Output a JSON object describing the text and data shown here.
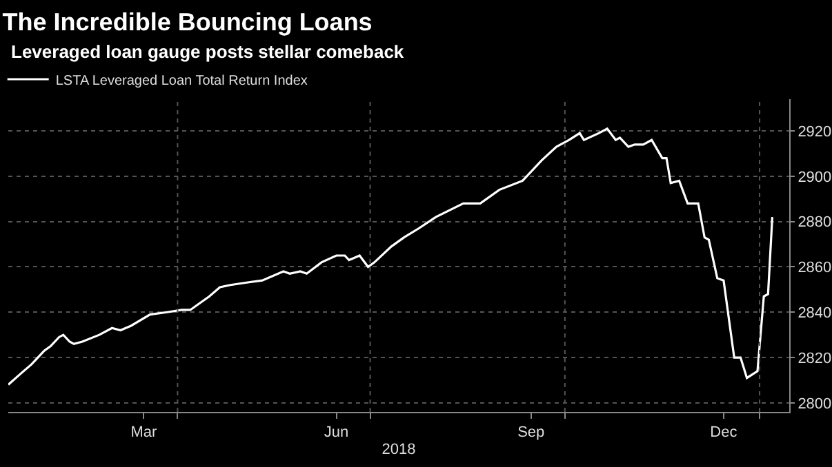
{
  "chart_data": {
    "type": "line",
    "title": "The Incredible Bouncing Loans",
    "subtitle": "Leveraged loan gauge posts stellar comeback",
    "xlabel": "2018",
    "x": [
      "2018-01-11",
      "2018-01-17",
      "2018-01-22",
      "2018-01-28",
      "2018-01-31",
      "2018-02-04",
      "2018-02-06",
      "2018-02-09",
      "2018-02-11",
      "2018-02-15",
      "2018-02-23",
      "2018-03-01",
      "2018-03-05",
      "2018-03-10",
      "2018-03-19",
      "2018-03-27",
      "2018-04-03",
      "2018-04-07",
      "2018-04-16",
      "2018-04-21",
      "2018-04-26",
      "2018-05-03",
      "2018-05-11",
      "2018-05-21",
      "2018-05-24",
      "2018-05-29",
      "2018-06-01",
      "2018-06-08",
      "2018-06-15",
      "2018-06-19",
      "2018-06-21",
      "2018-06-26",
      "2018-06-30",
      "2018-07-03",
      "2018-07-11",
      "2018-07-17",
      "2018-07-24",
      "2018-08-01",
      "2018-08-14",
      "2018-08-22",
      "2018-08-31",
      "2018-09-11",
      "2018-09-20",
      "2018-09-27",
      "2018-10-03",
      "2018-10-08",
      "2018-10-10",
      "2018-10-17",
      "2018-10-21",
      "2018-10-25",
      "2018-10-27",
      "2018-10-31",
      "2018-11-03",
      "2018-11-07",
      "2018-11-11",
      "2018-11-16",
      "2018-11-18",
      "2018-11-20",
      "2018-11-24",
      "2018-11-28",
      "2018-12-03",
      "2018-12-06",
      "2018-12-08",
      "2018-12-12",
      "2018-12-15",
      "2018-12-20",
      "2018-12-23",
      "2018-12-26",
      "2018-12-31",
      "2019-01-03",
      "2019-01-05",
      "2019-01-07"
    ],
    "series": [
      {
        "name": "LSTA Leveraged Loan Total Return Index",
        "color": "#ffffff",
        "values": [
          2808,
          2813,
          2817,
          2823,
          2825,
          2829,
          2830,
          2827,
          2826,
          2827,
          2830,
          2833,
          2832,
          2834,
          2839,
          2840,
          2841,
          2841,
          2847,
          2851,
          2852,
          2853,
          2854,
          2858,
          2857,
          2858,
          2857,
          2862,
          2865,
          2865,
          2863,
          2865,
          2860,
          2862,
          2869,
          2873,
          2877,
          2882,
          2888,
          2888,
          2894,
          2898,
          2907,
          2913,
          2916,
          2919,
          2916,
          2919,
          2921,
          2916,
          2917,
          2913,
          2914,
          2914,
          2916,
          2908,
          2908,
          2897,
          2898,
          2888,
          2888,
          2873,
          2872,
          2855,
          2854,
          2820,
          2820,
          2811,
          2814,
          2847,
          2848,
          2882
        ]
      }
    ],
    "xlim": [
      "2018-01-11",
      "2019-01-15"
    ],
    "xticks": [
      {
        "value": "2018-03-16",
        "label": "Mar"
      },
      {
        "value": "2018-04-01",
        "label": null
      },
      {
        "value": "2018-06-15",
        "label": "Jun"
      },
      {
        "value": "2018-07-01",
        "label": null
      },
      {
        "value": "2018-09-15",
        "label": "Sep"
      },
      {
        "value": "2018-10-01",
        "label": null
      },
      {
        "value": "2018-12-15",
        "label": "Dec"
      },
      {
        "value": "2019-01-01",
        "label": null
      }
    ],
    "ylim": [
      2796,
      2934
    ],
    "yticks": [
      2800,
      2820,
      2840,
      2860,
      2880,
      2900,
      2920
    ],
    "grid": true,
    "legend": "top left",
    "marker": "none",
    "line_style": "solid"
  }
}
